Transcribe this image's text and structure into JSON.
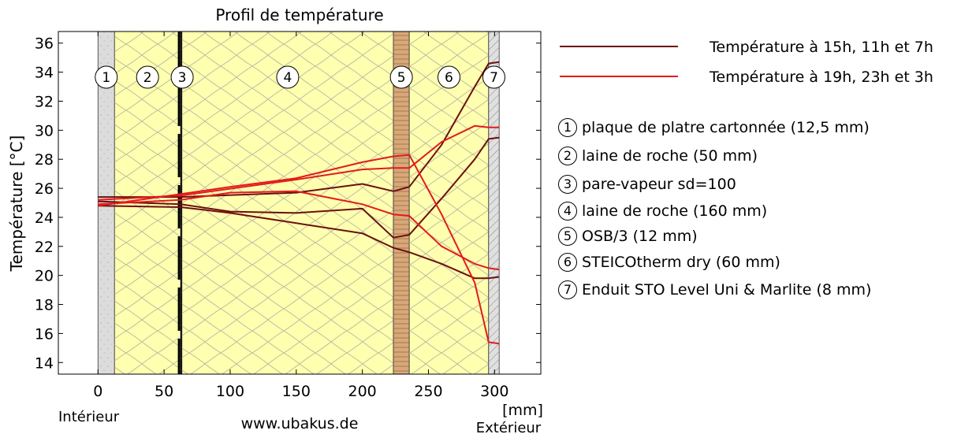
{
  "chart_data": {
    "type": "line",
    "title": "Profil de température",
    "ylabel": "Température [°C]",
    "xunit": "[mm]",
    "xlim": [
      -30,
      335
    ],
    "ylim": [
      13.2,
      36.8
    ],
    "xticks": [
      0,
      50,
      100,
      150,
      200,
      250,
      300
    ],
    "yticks": [
      14,
      16,
      18,
      20,
      22,
      24,
      26,
      28,
      30,
      32,
      34,
      36
    ],
    "left_label": "Intérieur",
    "right_label": "Extérieur",
    "source": "www.ubakus.de",
    "layers": [
      {
        "id": "1",
        "name": "plaque de platre cartonnée (12,5 mm)",
        "x0": 0,
        "x1": 12.5,
        "material": "plaster",
        "color": "#dcdcdc"
      },
      {
        "id": "2",
        "name": "laine de roche (50 mm)",
        "x0": 12.5,
        "x1": 62.5,
        "material": "insulation",
        "color": "#ffffb0"
      },
      {
        "id": "3",
        "name": "pare-vapeur sd=100",
        "x0": 62.5,
        "x1": 63.5,
        "material": "membrane",
        "color": "#000000"
      },
      {
        "id": "4",
        "name": "laine de roche (160 mm)",
        "x0": 63.5,
        "x1": 223.5,
        "material": "insulation",
        "color": "#ffffb0"
      },
      {
        "id": "5",
        "name": "OSB/3 (12 mm)",
        "x0": 223.5,
        "x1": 235.5,
        "material": "wood",
        "color": "#d8a87a"
      },
      {
        "id": "6",
        "name": "STEICOtherm dry (60 mm)",
        "x0": 235.5,
        "x1": 295.5,
        "material": "insulation",
        "color": "#ffffb0"
      },
      {
        "id": "7",
        "name": "Enduit STO Level Uni & Marlite (8 mm)",
        "x0": 295.5,
        "x1": 303.5,
        "material": "render",
        "color": "#e0e0e0"
      }
    ],
    "series": [
      {
        "name": "Température à 15h, 11h et 7h",
        "color": "#6b0f0f",
        "lines": [
          [
            [
              0,
              25.4
            ],
            [
              62.5,
              25.4
            ],
            [
              150,
              25.7
            ],
            [
              200,
              26.3
            ],
            [
              223.5,
              25.8
            ],
            [
              235.5,
              26.1
            ],
            [
              260,
              29.0
            ],
            [
              285,
              33.0
            ],
            [
              295.5,
              34.6
            ],
            [
              303.5,
              34.7
            ]
          ],
          [
            [
              0,
              25.1
            ],
            [
              62.5,
              24.9
            ],
            [
              100,
              24.4
            ],
            [
              150,
              24.3
            ],
            [
              200,
              24.6
            ],
            [
              223.5,
              22.6
            ],
            [
              235.5,
              22.8
            ],
            [
              260,
              25.3
            ],
            [
              285,
              28.0
            ],
            [
              295.5,
              29.4
            ],
            [
              303.5,
              29.5
            ]
          ],
          [
            [
              0,
              24.8
            ],
            [
              62.5,
              24.7
            ],
            [
              100,
              24.3
            ],
            [
              150,
              23.6
            ],
            [
              200,
              22.9
            ],
            [
              223.5,
              21.9
            ],
            [
              235.5,
              21.6
            ],
            [
              260,
              20.8
            ],
            [
              285,
              19.8
            ],
            [
              295.5,
              19.8
            ],
            [
              303.5,
              19.9
            ]
          ]
        ]
      },
      {
        "name": "Température à 19h, 23h et 3h",
        "color": "#e31a1c",
        "lines": [
          [
            [
              0,
              25.2
            ],
            [
              62.5,
              25.5
            ],
            [
              150,
              26.6
            ],
            [
              200,
              27.3
            ],
            [
              223.5,
              27.4
            ],
            [
              235.5,
              27.4
            ],
            [
              260,
              29.2
            ],
            [
              285,
              30.3
            ],
            [
              295.5,
              30.2
            ],
            [
              303.5,
              30.2
            ]
          ],
          [
            [
              0,
              24.9
            ],
            [
              62.5,
              25.2
            ],
            [
              100,
              25.7
            ],
            [
              150,
              25.8
            ],
            [
              200,
              24.9
            ],
            [
              223.5,
              24.2
            ],
            [
              235.5,
              24.1
            ],
            [
              260,
              22.0
            ],
            [
              285,
              20.8
            ],
            [
              295.5,
              20.5
            ],
            [
              303.5,
              20.4
            ]
          ],
          [
            [
              0,
              24.8
            ],
            [
              62.5,
              25.6
            ],
            [
              100,
              26.1
            ],
            [
              150,
              26.7
            ],
            [
              200,
              27.8
            ],
            [
              223.5,
              28.2
            ],
            [
              235.5,
              28.3
            ],
            [
              260,
              24.2
            ],
            [
              285,
              19.5
            ],
            [
              295.5,
              15.4
            ],
            [
              303.5,
              15.3
            ]
          ]
        ]
      }
    ]
  }
}
